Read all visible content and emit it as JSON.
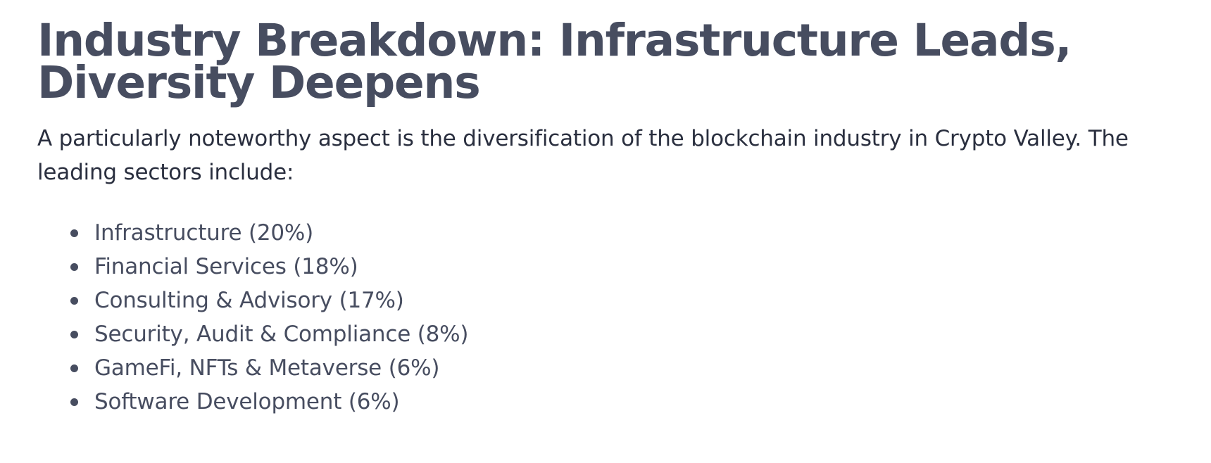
{
  "heading": {
    "title": "Industry Breakdown: Infrastructure Leads, Diversity Deepens"
  },
  "intro": {
    "text": "A particularly noteworthy aspect is the diversification of the blockchain industry in Crypto Valley. The leading sectors include:"
  },
  "sectors": [
    {
      "label": "Infrastructure (20%)"
    },
    {
      "label": "Financial Services (18%)"
    },
    {
      "label": "Consulting & Advisory (17%)"
    },
    {
      "label": "Security, Audit & Compliance (8%)"
    },
    {
      "label": "GameFi, NFTs & Metaverse (6%)"
    },
    {
      "label": "Software Development (6%)"
    }
  ]
}
